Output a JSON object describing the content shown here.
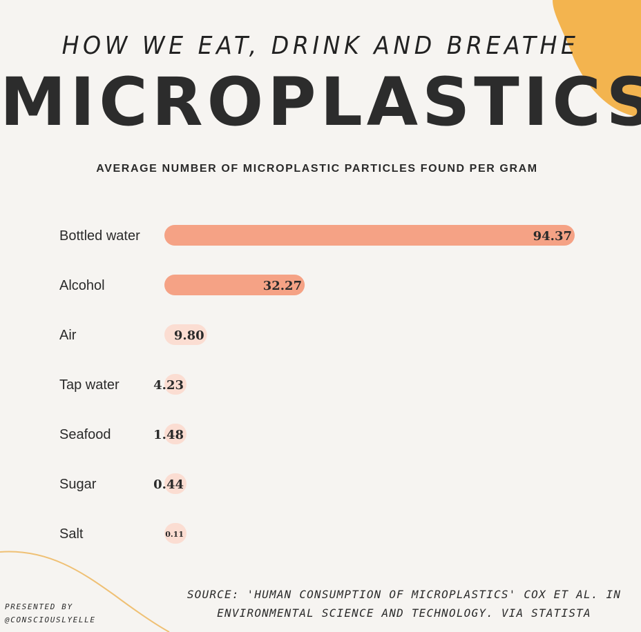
{
  "header": {
    "subtitle": "HOW WE EAT, DRINK AND BREATHE",
    "title": "MICROPLASTICS"
  },
  "chart_title": "AVERAGE NUMBER OF MICROPLASTIC PARTICLES FOUND PER GRAM",
  "chart_data": {
    "type": "bar",
    "orientation": "horizontal",
    "title": "AVERAGE NUMBER OF MICROPLASTIC PARTICLES FOUND PER GRAM",
    "categories": [
      "Bottled water",
      "Alcohol",
      "Air",
      "Tap water",
      "Seafood",
      "Sugar",
      "Salt"
    ],
    "values": [
      94.37,
      32.27,
      9.8,
      4.23,
      1.48,
      0.44,
      0.11
    ],
    "value_labels": [
      "94.37",
      "32.27",
      "9.80",
      "4.23",
      "1.48",
      "0.44",
      "0.11"
    ],
    "xlim": [
      0,
      94.37
    ],
    "grid": false,
    "colors": {
      "strong": "#f5a285",
      "light": "#fbddd2"
    }
  },
  "source": {
    "line1": "SOURCE: 'HUMAN CONSUMPTION OF MICROPLASTICS' COX ET AL. IN",
    "line2": "ENVIRONMENTAL SCIENCE AND TECHNOLOGY. VIA STATISTA"
  },
  "credit": {
    "line1": "PRESENTED BY",
    "line2": "@CONSCIOUSLYELLE"
  },
  "colors": {
    "background": "#f6f4f1",
    "accent_blob": "#f3b44f",
    "accent_line": "#efc074",
    "text": "#2a2a2a"
  }
}
